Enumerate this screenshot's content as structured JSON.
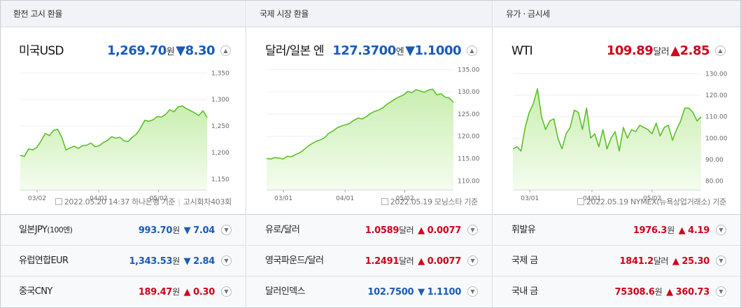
{
  "columns": [
    {
      "header": "환전 고시 환율",
      "main": {
        "name": "미국USD",
        "value": "1,269.70",
        "unit": "원",
        "arrow": "▼",
        "change": "8.30",
        "dir": "down"
      },
      "chart": {
        "type": "area",
        "x_ticks": [
          "03/02",
          "04/01",
          "05/02"
        ],
        "y_ticks": [
          "1,350",
          "1,300",
          "1,250",
          "1,200",
          "1,150"
        ],
        "ylim": [
          1130,
          1365
        ],
        "values": [
          1195,
          1193,
          1207,
          1205,
          1210,
          1222,
          1236,
          1232,
          1242,
          1244,
          1229,
          1205,
          1209,
          1212,
          1208,
          1213,
          1214,
          1218,
          1211,
          1213,
          1219,
          1223,
          1230,
          1227,
          1229,
          1222,
          1221,
          1229,
          1235,
          1247,
          1261,
          1259,
          1262,
          1268,
          1267,
          1272,
          1281,
          1277,
          1286,
          1288,
          1283,
          1279,
          1275,
          1270,
          1279,
          1266
        ]
      },
      "footer": {
        "date": "2022.05.20 14:37 하나은행 기준",
        "extra": "고시회차403회"
      },
      "rows": [
        {
          "name": "일본JPY",
          "sub": "(100엔)",
          "value": "993.70",
          "unit": "원",
          "arrow": "▼",
          "change": "7.04",
          "dir": "down"
        },
        {
          "name": "유럽연합EUR",
          "sub": "",
          "value": "1,343.53",
          "unit": "원",
          "arrow": "▼",
          "change": "2.84",
          "dir": "down"
        },
        {
          "name": "중국CNY",
          "sub": "",
          "value": "189.47",
          "unit": "원",
          "arrow": "▲",
          "change": "0.30",
          "dir": "up"
        }
      ]
    },
    {
      "header": "국제 시장 환율",
      "main": {
        "name": "달러/일본 엔",
        "value": "127.3700",
        "unit": "엔",
        "arrow": "▼",
        "change": "1.1000",
        "dir": "down"
      },
      "chart": {
        "type": "area",
        "x_ticks": [
          "03/01",
          "04/01",
          "05/02"
        ],
        "y_ticks": [
          "135.00",
          "130.00",
          "125.00",
          "120.00",
          "115.00",
          "110.00"
        ],
        "ylim": [
          108,
          136
        ],
        "values": [
          115.0,
          114.9,
          115.2,
          115.1,
          114.9,
          115.5,
          115.4,
          115.9,
          116.3,
          117.0,
          117.8,
          118.4,
          118.9,
          119.2,
          119.7,
          120.7,
          121.2,
          121.9,
          122.3,
          122.6,
          122.9,
          123.6,
          124.1,
          123.9,
          124.4,
          125.1,
          125.6,
          125.9,
          126.4,
          127.2,
          127.8,
          128.4,
          128.9,
          129.3,
          130.1,
          129.8,
          130.5,
          130.2,
          129.9,
          130.4,
          130.6,
          129.3,
          129.6,
          128.8,
          128.6,
          127.6
        ]
      },
      "footer": {
        "date": "2022.05.19 모닝스타 기준",
        "extra": ""
      },
      "rows": [
        {
          "name": "유로/달러",
          "sub": "",
          "value": "1.0589",
          "unit": "달러",
          "arrow": "▲",
          "change": "0.0077",
          "dir": "up"
        },
        {
          "name": "영국파운드/달러",
          "sub": "",
          "value": "1.2491",
          "unit": "달러",
          "arrow": "▲",
          "change": "0.0077",
          "dir": "up"
        },
        {
          "name": "달러인덱스",
          "sub": "",
          "value": "102.7500",
          "unit": "",
          "arrow": "▼",
          "change": "1.1100",
          "dir": "down"
        }
      ]
    },
    {
      "header": "유가 · 금시세",
      "main": {
        "name": "WTI",
        "value": "109.89",
        "unit": "달러",
        "arrow": "▲",
        "change": "2.85",
        "dir": "up"
      },
      "chart": {
        "type": "area",
        "x_ticks": [
          "03/01",
          "04/01",
          "05/02"
        ],
        "y_ticks": [
          "130.00",
          "120.00",
          "110.00",
          "100.00",
          "90.00",
          "80.00"
        ],
        "ylim": [
          76,
          134
        ],
        "values": [
          95,
          96,
          94,
          105,
          112,
          116,
          123,
          110,
          104,
          108,
          109,
          100,
          95,
          102,
          105,
          113,
          112,
          104,
          114,
          100,
          102,
          96,
          104,
          95,
          100,
          103,
          94,
          105,
          100,
          104,
          103,
          106,
          105,
          104,
          102,
          107,
          101,
          105,
          106,
          99,
          104,
          108,
          114,
          114,
          112,
          108,
          110
        ]
      },
      "footer": {
        "date": "2022.05.19 NYMEX(뉴욕상업거래소) 기준",
        "extra": ""
      },
      "rows": [
        {
          "name": "휘발유",
          "sub": "",
          "value": "1976.3",
          "unit": "원",
          "arrow": "▲",
          "change": "4.19",
          "dir": "up"
        },
        {
          "name": "국제 금",
          "sub": "",
          "value": "1841.2",
          "unit": "달러",
          "arrow": "▲",
          "change": "25.30",
          "dir": "up"
        },
        {
          "name": "국내 금",
          "sub": "",
          "value": "75308.6",
          "unit": "원",
          "arrow": "▲",
          "change": "360.73",
          "dir": "up"
        }
      ]
    }
  ],
  "icons": {
    "expand": "chevron-up-icon",
    "more": "chevron-down-icon",
    "doc": "document-icon"
  },
  "colors": {
    "up": "#d0021b",
    "down": "#1a5bb5",
    "line": "#5cc02a",
    "fill_top": "#c9eeb0",
    "fill_bottom": "#f4fcef"
  }
}
